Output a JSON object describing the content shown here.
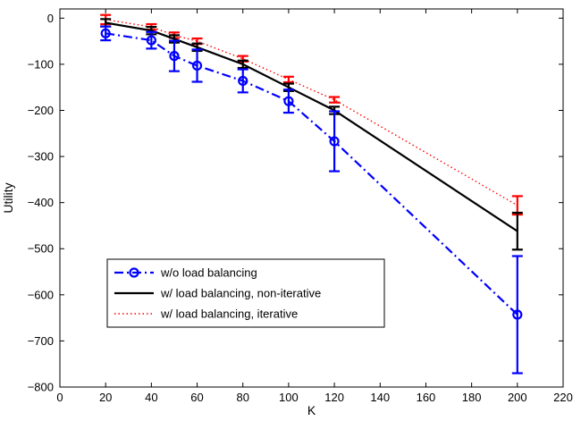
{
  "chart_data": {
    "type": "line",
    "title": "",
    "xlabel": "K",
    "ylabel": "Utility",
    "xlim": [
      0,
      220
    ],
    "ylim": [
      -800,
      20
    ],
    "xticks": [
      0,
      20,
      40,
      60,
      80,
      100,
      120,
      140,
      160,
      180,
      200,
      220
    ],
    "yticks": [
      0,
      -100,
      -200,
      -300,
      -400,
      -500,
      -600,
      -700,
      -800
    ],
    "grid": false,
    "legend_position": "lower-left",
    "x": [
      20,
      40,
      50,
      60,
      80,
      100,
      120,
      200
    ],
    "series": [
      {
        "name": "w/o load balancing",
        "color": "#0000ff",
        "style": "dash-dot",
        "marker": "circle",
        "values": [
          -33,
          -48,
          -82,
          -103,
          -136,
          -180,
          -267,
          -643
        ],
        "error": [
          15,
          18,
          33,
          35,
          25,
          25,
          65,
          127
        ]
      },
      {
        "name": "w/ load balancing, non-iterative",
        "color": "#000000",
        "style": "solid",
        "marker": "none",
        "values": [
          -10,
          -27,
          -45,
          -63,
          -100,
          -150,
          -200,
          -462
        ],
        "error": [
          8,
          8,
          8,
          8,
          8,
          8,
          8,
          40
        ]
      },
      {
        "name": "w/ load balancing, iterative",
        "color": "#ff0000",
        "style": "dotted",
        "marker": "none",
        "values": [
          -3,
          -19,
          -37,
          -50,
          -88,
          -133,
          -177,
          -406
        ],
        "error": [
          10,
          6,
          6,
          6,
          6,
          6,
          6,
          20
        ]
      }
    ]
  }
}
